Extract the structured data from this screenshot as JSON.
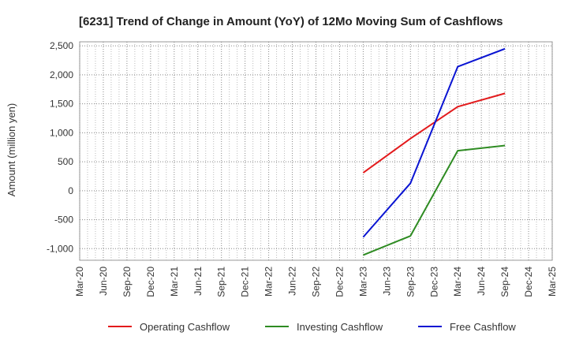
{
  "chart_data": {
    "type": "line",
    "title": "[6231]  Trend of Change in Amount (YoY) of 12Mo Moving Sum of Cashflows",
    "xlabel": "",
    "ylabel": "Amount (million yen)",
    "categories": [
      "Mar-20",
      "Jun-20",
      "Sep-20",
      "Dec-20",
      "Mar-21",
      "Jun-21",
      "Sep-21",
      "Dec-21",
      "Mar-22",
      "Jun-22",
      "Sep-22",
      "Dec-22",
      "Mar-23",
      "Jun-23",
      "Sep-23",
      "Dec-23",
      "Mar-24",
      "Jun-24",
      "Sep-24",
      "Dec-24",
      "Mar-25"
    ],
    "ylim": [
      -1200,
      2570
    ],
    "yticks": [
      2500,
      2000,
      1500,
      1000,
      500,
      0,
      -500,
      -1000
    ],
    "ytick_labels": [
      "2,500",
      "2,000",
      "1,500",
      "1,000",
      "500",
      "0",
      "-500",
      "-1,000"
    ],
    "grid": true,
    "legend_position": "bottom",
    "series": [
      {
        "name": "Operating Cashflow",
        "color": "#e31a1c",
        "x": [
          "Mar-23",
          "Sep-23",
          "Mar-24",
          "Sep-24"
        ],
        "values": [
          310,
          900,
          1450,
          1680
        ]
      },
      {
        "name": "Investing Cashflow",
        "color": "#2e8b22",
        "x": [
          "Mar-23",
          "Sep-23",
          "Mar-24",
          "Sep-24"
        ],
        "values": [
          -1110,
          -780,
          690,
          780
        ]
      },
      {
        "name": "Free Cashflow",
        "color": "#0a14d2",
        "x": [
          "Mar-23",
          "Sep-23",
          "Mar-24",
          "Sep-24"
        ],
        "values": [
          -800,
          130,
          2140,
          2450
        ]
      }
    ]
  }
}
